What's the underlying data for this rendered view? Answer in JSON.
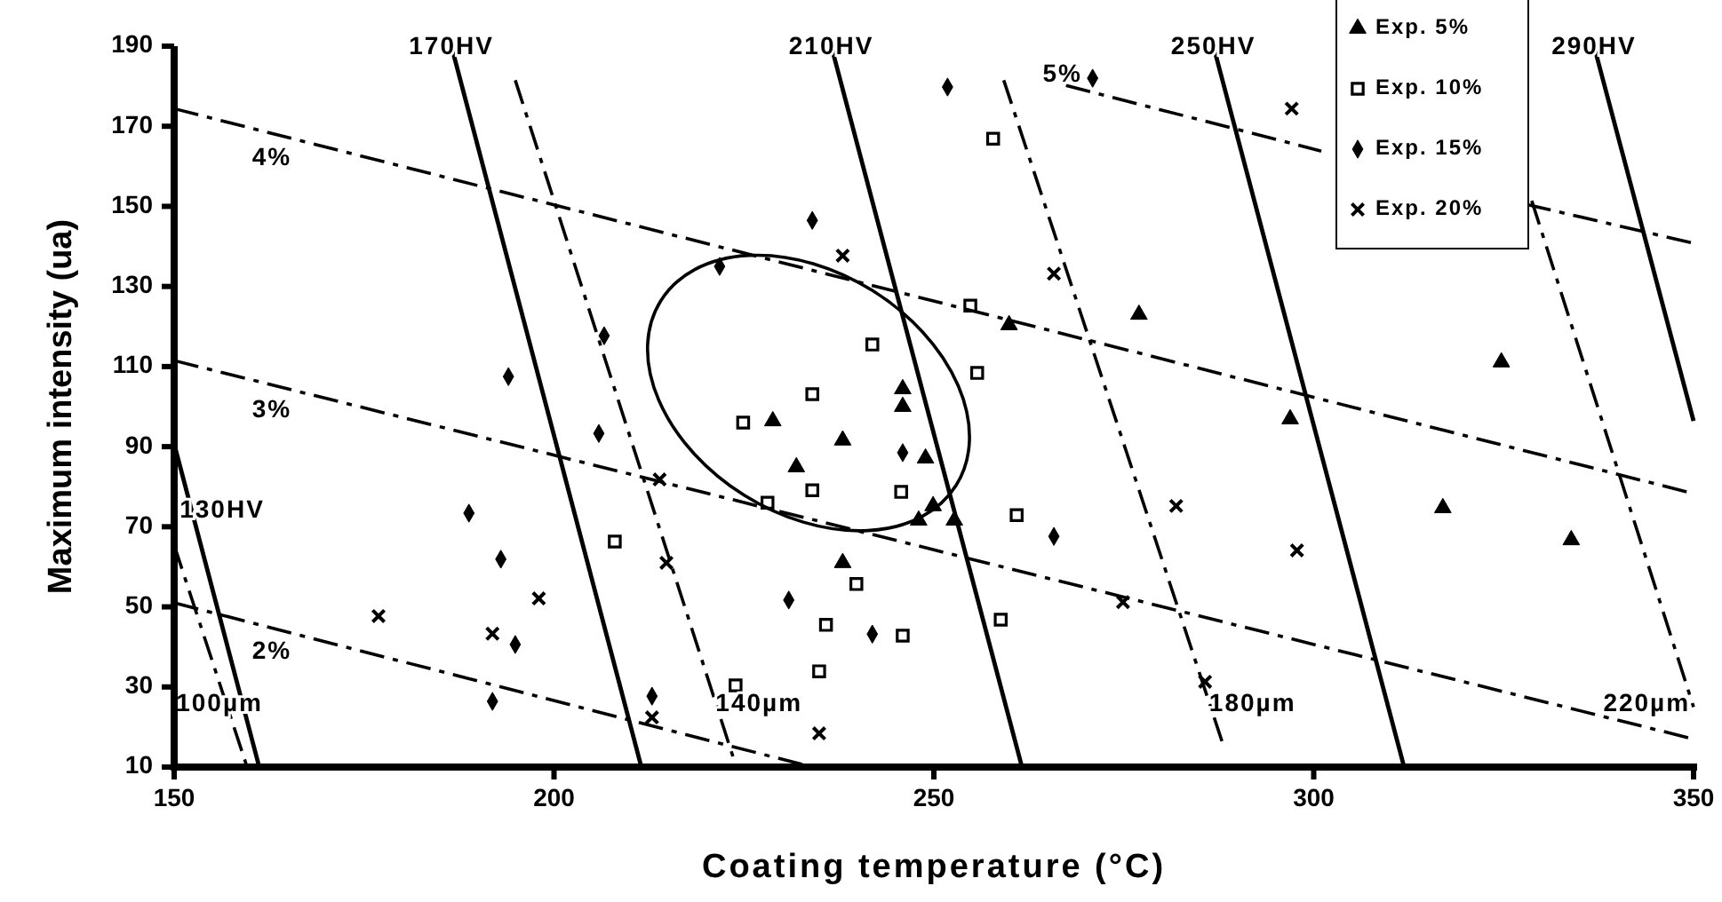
{
  "chart_data": {
    "type": "scatter",
    "xlabel": "Coating temperature (°C)",
    "ylabel": "Maximum intensity (ua)",
    "xlim": [
      150,
      350
    ],
    "xticks": [
      150,
      200,
      250,
      300,
      350
    ],
    "ylim": [
      10,
      190
    ],
    "yticks": [
      10,
      30,
      50,
      70,
      90,
      110,
      130,
      150,
      170,
      190
    ],
    "legend": "top right",
    "series": [
      {
        "name": "Exp. 5%",
        "color": "#000000",
        "marker": "triangle",
        "x": [
          228.8,
          238.0,
          231.9,
          245.9,
          245.9,
          248.9,
          249.9,
          248.0,
          252.7,
          238.0,
          259.9,
          277.0,
          296.9,
          324.7,
          317.0,
          333.9
        ],
        "values": [
          96.4,
          91.6,
          84.9,
          104.4,
          100.0,
          87.1,
          75.2,
          71.6,
          71.6,
          61.0,
          120.4,
          123.0,
          96.9,
          111.1,
          74.7,
          66.7
        ]
      },
      {
        "name": "Exp. 10%",
        "color": "#000000",
        "marker": "square",
        "x": [
          224.9,
          234.0,
          241.9,
          254.8,
          255.7,
          234.0,
          245.7,
          228.1,
          208.0,
          239.8,
          235.8,
          245.9,
          234.9,
          223.9,
          257.8,
          260.9,
          258.8
        ],
        "values": [
          96.0,
          103.1,
          115.5,
          125.2,
          108.4,
          79.1,
          78.7,
          76.0,
          66.3,
          55.7,
          45.5,
          42.8,
          33.9,
          30.4,
          166.9,
          72.9,
          46.8
        ]
      },
      {
        "name": "Exp. 15%",
        "color": "#000000",
        "marker": "diamond",
        "x": [
          194.0,
          188.8,
          193.0,
          194.9,
          191.9,
          212.9,
          234.0,
          221.8,
          206.6,
          205.9,
          245.9,
          230.9,
          241.9,
          251.8,
          265.8,
          270.9
        ],
        "values": [
          107.5,
          73.4,
          61.9,
          40.6,
          26.4,
          27.7,
          146.5,
          135.0,
          117.7,
          93.3,
          88.5,
          51.7,
          43.2,
          179.8,
          67.6,
          182.0
        ]
      },
      {
        "name": "Exp. 20%",
        "color": "#000000",
        "marker": "cross",
        "x": [
          176.9,
          191.9,
          198.0,
          212.9,
          214.8,
          238.0,
          213.9,
          234.9,
          265.8,
          281.9,
          274.9,
          285.7,
          297.1,
          297.8
        ],
        "values": [
          47.7,
          43.3,
          52.1,
          22.4,
          61.0,
          137.7,
          81.8,
          18.4,
          133.2,
          75.2,
          51.2,
          31.3,
          174.4,
          64.1
        ]
      },
      {
        "name": "130HV",
        "type": "line",
        "color": "#000000",
        "marker": "none",
        "line_style": "solid",
        "x": [
          150,
          161.2
        ],
        "values": [
          90.7,
          10
        ]
      },
      {
        "name": "170HV",
        "type": "line",
        "color": "#000000",
        "marker": "none",
        "line_style": "solid",
        "x": [
          186.5,
          211.5
        ],
        "values": [
          190,
          10
        ]
      },
      {
        "name": "210HV",
        "type": "line",
        "color": "#000000",
        "marker": "none",
        "line_style": "solid",
        "x": [
          236.5,
          261.6
        ],
        "values": [
          190,
          10
        ]
      },
      {
        "name": "250HV",
        "type": "line",
        "color": "#000000",
        "marker": "none",
        "line_style": "solid",
        "x": [
          286.8,
          311.9
        ],
        "values": [
          190,
          10
        ]
      },
      {
        "name": "290HV",
        "type": "line",
        "color": "#000000",
        "marker": "none",
        "line_style": "solid",
        "x": [
          336.9,
          350
        ],
        "values": [
          190,
          96.4
        ]
      },
      {
        "name": "4%",
        "type": "line",
        "color": "#000000",
        "marker": "none",
        "line_style": "dashed",
        "x": [
          150,
          350
        ],
        "values": [
          174.4,
          78.3
        ]
      },
      {
        "name": "3%",
        "type": "line",
        "color": "#000000",
        "marker": "none",
        "line_style": "dashed",
        "x": [
          150,
          350
        ],
        "values": [
          111.5,
          17
        ]
      },
      {
        "name": "2%",
        "type": "line",
        "color": "#000000",
        "marker": "none",
        "line_style": "dashed",
        "x": [
          150,
          234
        ],
        "values": [
          51,
          10
        ]
      },
      {
        "name": "5%",
        "type": "line",
        "color": "#000000",
        "marker": "none",
        "line_style": "dashed",
        "x": [
          267.4,
          301,
          314,
          328,
          350
        ],
        "values": [
          180.2,
          163.8,
          null,
          150.5,
          140.8
        ]
      },
      {
        "name": "100µm",
        "type": "line",
        "color": "#000000",
        "marker": "none",
        "line_style": "dashed",
        "x": [
          150,
          159.6
        ],
        "values": [
          65.4,
          10
        ]
      },
      {
        "name": "140µm",
        "type": "line",
        "color": "#000000",
        "marker": "none",
        "line_style": "dashed",
        "x": [
          194.9,
          224
        ],
        "values": [
          181.5,
          10
        ]
      },
      {
        "name": "180µm",
        "type": "line",
        "color": "#000000",
        "marker": "none",
        "line_style": "dashed",
        "x": [
          259.2,
          288
        ],
        "values": [
          181.5,
          16
        ]
      },
      {
        "name": "220µm",
        "type": "line",
        "color": "#000000",
        "marker": "none",
        "line_style": "dashed",
        "x": [
          328.7,
          350
        ],
        "values": [
          151.4,
          25
        ]
      }
    ]
  }
}
